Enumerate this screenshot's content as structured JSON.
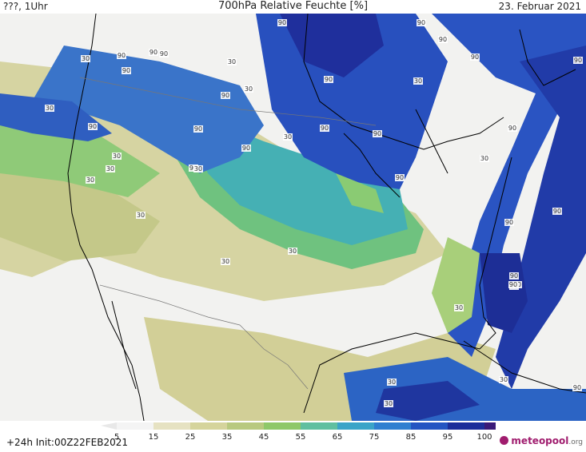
{
  "header": {
    "left_label": "???, 1Uhr",
    "title": "700hPa Relative Feuchte [%]",
    "date": "23. Februar 2021"
  },
  "footer": {
    "run_info": "+24h  Init:00Z22FEB2021",
    "brand_name": "meteopool",
    "brand_tld": ".org"
  },
  "colorbar": {
    "ticks": [
      "5",
      "15",
      "25",
      "35",
      "45",
      "55",
      "65",
      "75",
      "85",
      "95",
      "100"
    ],
    "colors": [
      "#f4f4f4",
      "#e6e2c2",
      "#d5d49c",
      "#b8c97f",
      "#8ec869",
      "#5fbfa0",
      "#3aa4c8",
      "#2f7fd0",
      "#2455c2",
      "#1c2e9a",
      "#3a1a78"
    ]
  },
  "map_labels": [
    "30",
    "30",
    "90",
    "90",
    "90",
    "90",
    "90",
    "90",
    "90",
    "90",
    "90",
    "90",
    "90",
    "30",
    "30",
    "30",
    "30",
    "30",
    "30",
    "30",
    "90",
    "90",
    "90",
    "90",
    "90",
    "90",
    "90",
    "90",
    "90",
    "90",
    "30",
    "30",
    "30",
    "30",
    "30",
    "90",
    "90",
    "99",
    "90",
    "30",
    "30",
    "30",
    "90",
    "30"
  ]
}
